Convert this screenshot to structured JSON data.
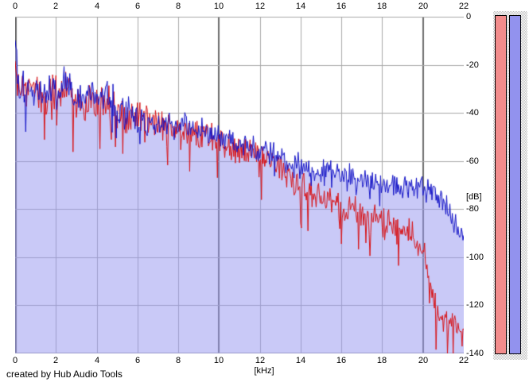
{
  "credit": "created by Hub Audio Tools",
  "chart_data": {
    "type": "line",
    "xlabel": "[kHz]",
    "ylabel": "[dB]",
    "xlim": [
      0,
      22
    ],
    "ylim": [
      -140,
      0
    ],
    "x_ticks": [
      "0",
      "2",
      "4",
      "6",
      "8",
      "10",
      "12",
      "14",
      "16",
      "18",
      "20",
      "22"
    ],
    "x_tick_values_khz": [
      0,
      2,
      4,
      6,
      8,
      10,
      12,
      14,
      16,
      18,
      20,
      22
    ],
    "y_ticks": [
      "0",
      "-20",
      "-40",
      "-60",
      "-80",
      "-100",
      "-120",
      "-140"
    ],
    "y_tick_values_db": [
      0,
      -20,
      -40,
      -60,
      -80,
      -100,
      -120,
      -140
    ],
    "grid": {
      "shown": true,
      "minor_color": "#a9a9a9",
      "major_color": "#6d6d6d",
      "major_x_every_khz": 10
    },
    "plot_background": "#ffffff",
    "series": [
      {
        "name": "red-trace-spectrum",
        "color": "#d81418",
        "area_fill": null,
        "noise": {
          "jitter_db": 6,
          "low_freq_boost_below_khz": 6.5,
          "low_freq_factor": 1.3,
          "dip_prob": 0.09,
          "dip_depth_db": 22,
          "dip_range_khz": [
            1,
            22
          ]
        },
        "trend_db_by_khz": [
          [
            0,
            -18
          ],
          [
            0.1,
            -26
          ],
          [
            0.5,
            -31
          ],
          [
            1,
            -32
          ],
          [
            2,
            -33
          ],
          [
            2.4,
            -30
          ],
          [
            3,
            -36
          ],
          [
            4,
            -35
          ],
          [
            5,
            -39
          ],
          [
            6,
            -42
          ],
          [
            7,
            -45
          ],
          [
            8,
            -46
          ],
          [
            9,
            -49
          ],
          [
            10,
            -52
          ],
          [
            11,
            -55
          ],
          [
            12,
            -58
          ],
          [
            13,
            -63
          ],
          [
            14,
            -70
          ],
          [
            15,
            -75
          ],
          [
            16,
            -79
          ],
          [
            17,
            -82
          ],
          [
            18,
            -85
          ],
          [
            19,
            -89
          ],
          [
            19.6,
            -91
          ],
          [
            20,
            -97
          ],
          [
            20.3,
            -107
          ],
          [
            20.6,
            -118
          ],
          [
            20.9,
            -125
          ],
          [
            21.2,
            -128
          ],
          [
            21.6,
            -127
          ],
          [
            22,
            -131
          ]
        ]
      },
      {
        "name": "blue-trace-spectrum",
        "color": "#1616c8",
        "area_fill": "rgba(148,148,240,0.5)",
        "noise": {
          "jitter_db": 5.5,
          "low_freq_boost_below_khz": 6.5,
          "low_freq_factor": 1.35,
          "dip_prob": 0.05,
          "dip_depth_db": 13,
          "dip_range_khz": [
            0.3,
            21
          ]
        },
        "trend_db_by_khz": [
          [
            0,
            -8
          ],
          [
            0.06,
            -16
          ],
          [
            0.15,
            -26
          ],
          [
            0.5,
            -29
          ],
          [
            1,
            -30
          ],
          [
            1.5,
            -31
          ],
          [
            2,
            -31
          ],
          [
            2.4,
            -28
          ],
          [
            3,
            -34
          ],
          [
            3.6,
            -33
          ],
          [
            4,
            -34
          ],
          [
            4.3,
            -30
          ],
          [
            5,
            -38
          ],
          [
            6,
            -41
          ],
          [
            6.5,
            -42
          ],
          [
            7,
            -44
          ],
          [
            8,
            -45
          ],
          [
            9,
            -47
          ],
          [
            10,
            -50
          ],
          [
            11,
            -53
          ],
          [
            12,
            -55
          ],
          [
            13,
            -59
          ],
          [
            14,
            -62
          ],
          [
            15,
            -64
          ],
          [
            16,
            -66
          ],
          [
            17,
            -68
          ],
          [
            18,
            -69
          ],
          [
            19,
            -71
          ],
          [
            20,
            -72
          ],
          [
            20.5,
            -74
          ],
          [
            21,
            -77
          ],
          [
            21.4,
            -83
          ],
          [
            21.75,
            -90
          ],
          [
            21.9,
            -92
          ],
          [
            22,
            -87
          ]
        ]
      }
    ]
  },
  "meters": {
    "range_db": [
      0,
      -140
    ],
    "bars": [
      {
        "name": "level-meter-red",
        "color": "#f28c8c",
        "level_db": 0
      },
      {
        "name": "level-meter-blue",
        "color": "#9292ee",
        "level_db": 0
      }
    ],
    "border_color": "#000000",
    "shadow_color": "#c2c2c2"
  }
}
